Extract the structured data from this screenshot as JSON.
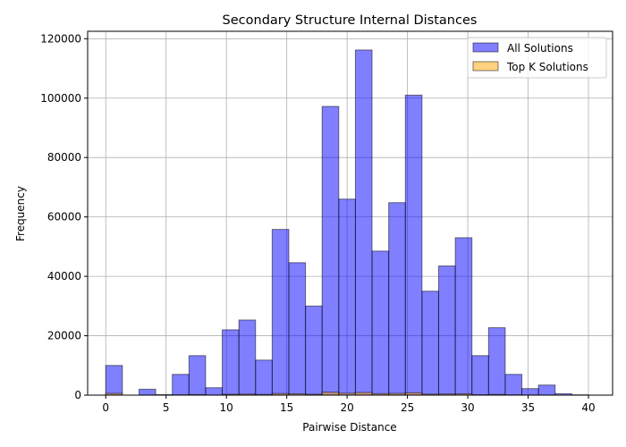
{
  "chart_data": {
    "type": "bar",
    "title": "Secondary Structure Internal Distances",
    "xlabel": "Pairwise Distance",
    "ylabel": "Frequency",
    "xlim": [
      -1.5,
      42
    ],
    "ylim": [
      0,
      122500
    ],
    "grid": true,
    "legend_position": "top-right",
    "x_ticks": [
      0,
      5,
      10,
      15,
      20,
      25,
      30,
      35,
      40
    ],
    "y_ticks": [
      0,
      20000,
      40000,
      60000,
      80000,
      100000,
      120000
    ],
    "bin_edges": [
      0,
      1.379,
      2.759,
      4.138,
      5.517,
      6.897,
      8.276,
      9.655,
      11.034,
      12.414,
      13.793,
      15.172,
      16.552,
      17.931,
      19.31,
      20.69,
      22.069,
      23.448,
      24.828,
      26.207,
      27.586,
      28.966,
      30.345,
      31.724,
      33.103,
      34.483,
      35.862,
      37.241,
      38.621,
      40
    ],
    "series": [
      {
        "name": "All Solutions",
        "color": "#0000ff",
        "opacity": 0.5,
        "values": [
          10000,
          0,
          2000,
          200,
          7000,
          13300,
          2500,
          22000,
          25300,
          11800,
          55800,
          44600,
          30000,
          97200,
          66000,
          116200,
          48500,
          64800,
          101000,
          35000,
          43500,
          53000,
          13300,
          22700,
          7000,
          2200,
          3400,
          500,
          100
        ]
      },
      {
        "name": "Top K Solutions",
        "color": "#ffa500",
        "opacity": 0.5,
        "values": [
          600,
          0,
          50,
          0,
          100,
          200,
          50,
          300,
          350,
          250,
          550,
          450,
          300,
          1000,
          650,
          900,
          500,
          600,
          800,
          350,
          400,
          450,
          150,
          250,
          100,
          50,
          50,
          0,
          0
        ]
      }
    ]
  }
}
